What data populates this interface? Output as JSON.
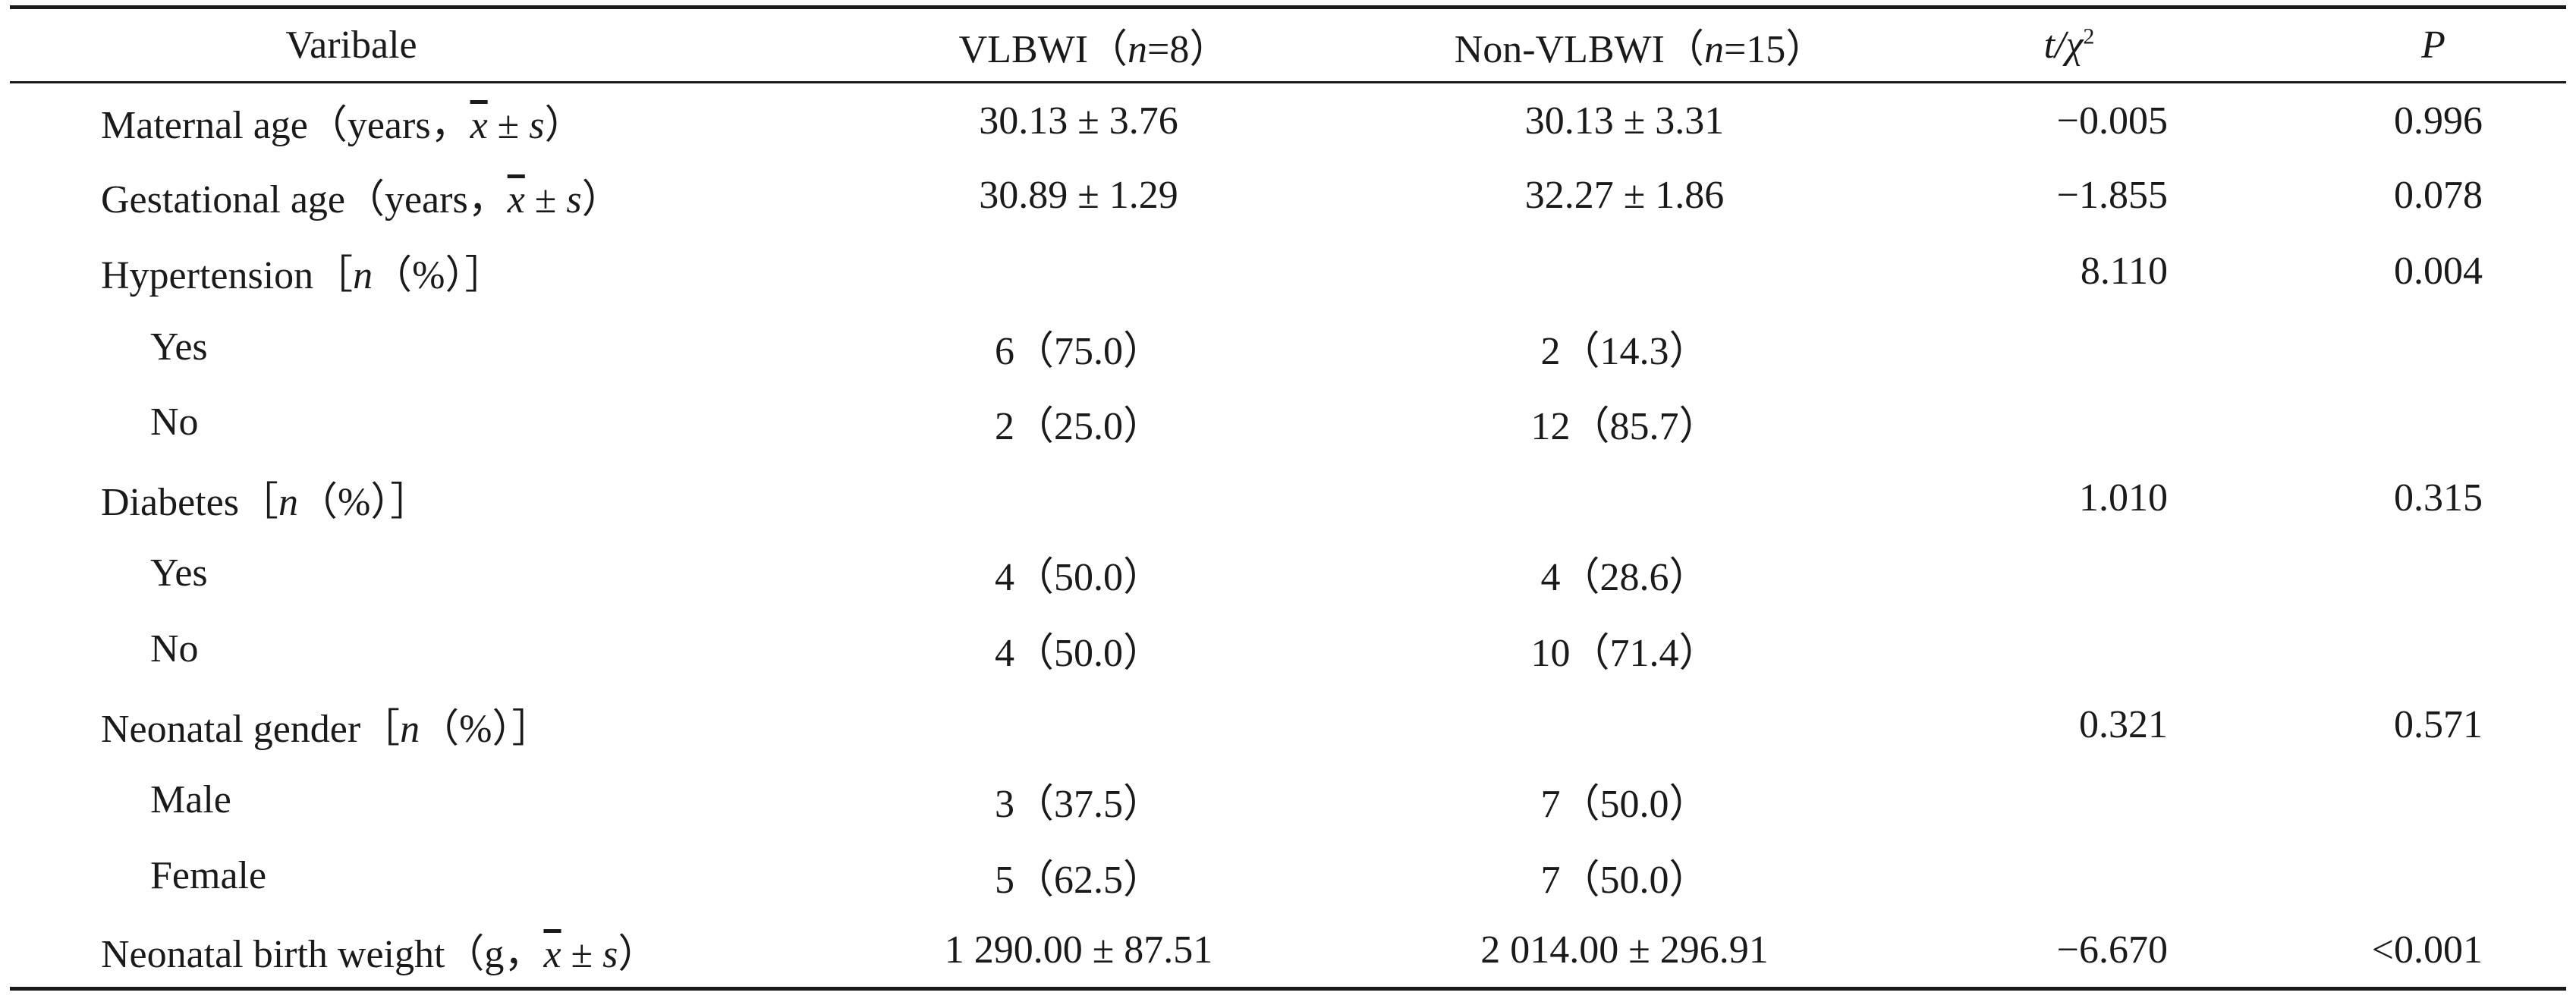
{
  "header": {
    "variable": "Varibale",
    "group1_prefix": "VLBWI（",
    "group1_n": "n",
    "group1_suffix": "=8）",
    "group2_prefix": "Non-VLBWI（",
    "group2_n": "n",
    "group2_suffix": "=15）",
    "stat_t": "t",
    "stat_slash": "/",
    "stat_chi": "χ",
    "stat_sup": "2",
    "p": "P"
  },
  "rows": [
    {
      "label": "Maternal age（years，",
      "unit_x": "x",
      "unit_pm": " ± ",
      "unit_s": "s",
      "unit_close": "）",
      "g1": "30.13 ± 3.76",
      "g2": "30.13 ± 3.31",
      "stat": "−0.005",
      "p": "0.996"
    },
    {
      "label": "Gestational age（years，",
      "unit_x": "x",
      "unit_pm": " ± ",
      "unit_s": "s",
      "unit_close": "）",
      "g1": "30.89 ± 1.29",
      "g2": "32.27 ± 1.86",
      "stat": "−1.855",
      "p": "0.078"
    },
    {
      "label": "Hypertension［",
      "n": "n",
      "pct": "（%）］",
      "g1": "",
      "g2": "",
      "stat": "8.110",
      "p": "0.004"
    },
    {
      "label": "Yes",
      "g1": "6（75.0）",
      "g2": "2（14.3）",
      "stat": "",
      "p": ""
    },
    {
      "label": "No",
      "g1": "2（25.0）",
      "g2": "12（85.7）",
      "stat": "",
      "p": ""
    },
    {
      "label": "Diabetes［",
      "n": "n",
      "pct": "（%）］",
      "g1": "",
      "g2": "",
      "stat": "1.010",
      "p": "0.315"
    },
    {
      "label": "Yes",
      "g1": "4（50.0）",
      "g2": "4（28.6）",
      "stat": "",
      "p": ""
    },
    {
      "label": "No",
      "g1": "4（50.0）",
      "g2": "10（71.4）",
      "stat": "",
      "p": ""
    },
    {
      "label": "Neonatal gender［",
      "n": "n",
      "pct": "（%）］",
      "g1": "",
      "g2": "",
      "stat": "0.321",
      "p": "0.571"
    },
    {
      "label": "Male",
      "g1": "3（37.5）",
      "g2": "7（50.0）",
      "stat": "",
      "p": ""
    },
    {
      "label": "Female",
      "g1": "5（62.5）",
      "g2": "7（50.0）",
      "stat": "",
      "p": ""
    },
    {
      "label": "Neonatal birth weight（g，",
      "unit_x": "x",
      "unit_pm": " ± ",
      "unit_s": "s",
      "unit_close": "）",
      "g1": "1 290.00 ± 87.51",
      "g2": "2 014.00 ± 296.91",
      "stat": "−6.670",
      "p": "<0.001"
    }
  ]
}
